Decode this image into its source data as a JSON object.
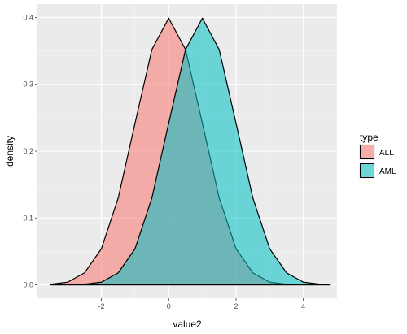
{
  "chart_data": {
    "type": "area",
    "subtype": "density",
    "xlabel": "value2",
    "ylabel": "density",
    "xlim": [
      -3.9,
      5.0
    ],
    "ylim": [
      -0.02,
      0.42
    ],
    "x_ticks": [
      -2,
      0,
      2,
      4
    ],
    "x_tick_labels": [
      "-2",
      "0",
      "2",
      "4"
    ],
    "y_ticks": [
      0.0,
      0.1,
      0.2,
      0.3,
      0.4
    ],
    "y_tick_labels": [
      "0.0",
      "0.1",
      "0.2",
      "0.3",
      "0.4"
    ],
    "grid": true,
    "legend": {
      "title": "type",
      "position": "right"
    },
    "series": [
      {
        "name": "ALL",
        "color": "#F8766D",
        "x": [
          -3.5,
          -3.0,
          -2.5,
          -2.0,
          -1.5,
          -1.0,
          -0.5,
          0.0,
          0.5,
          1.0,
          1.5,
          2.0,
          2.5,
          3.0,
          3.5,
          4.0,
          4.5,
          4.8
        ],
        "y": [
          0.001,
          0.004,
          0.018,
          0.054,
          0.13,
          0.242,
          0.352,
          0.399,
          0.352,
          0.242,
          0.13,
          0.054,
          0.018,
          0.004,
          0.001,
          0.0,
          0.0,
          0.0
        ]
      },
      {
        "name": "AML",
        "color": "#00BFC4",
        "x": [
          -3.5,
          -3.0,
          -2.5,
          -2.0,
          -1.5,
          -1.0,
          -0.5,
          0.0,
          0.5,
          1.0,
          1.5,
          2.0,
          2.5,
          3.0,
          3.5,
          4.0,
          4.5,
          4.8
        ],
        "y": [
          0.0,
          0.0,
          0.001,
          0.004,
          0.018,
          0.054,
          0.13,
          0.242,
          0.352,
          0.399,
          0.352,
          0.242,
          0.13,
          0.054,
          0.018,
          0.004,
          0.001,
          0.0
        ]
      }
    ]
  }
}
